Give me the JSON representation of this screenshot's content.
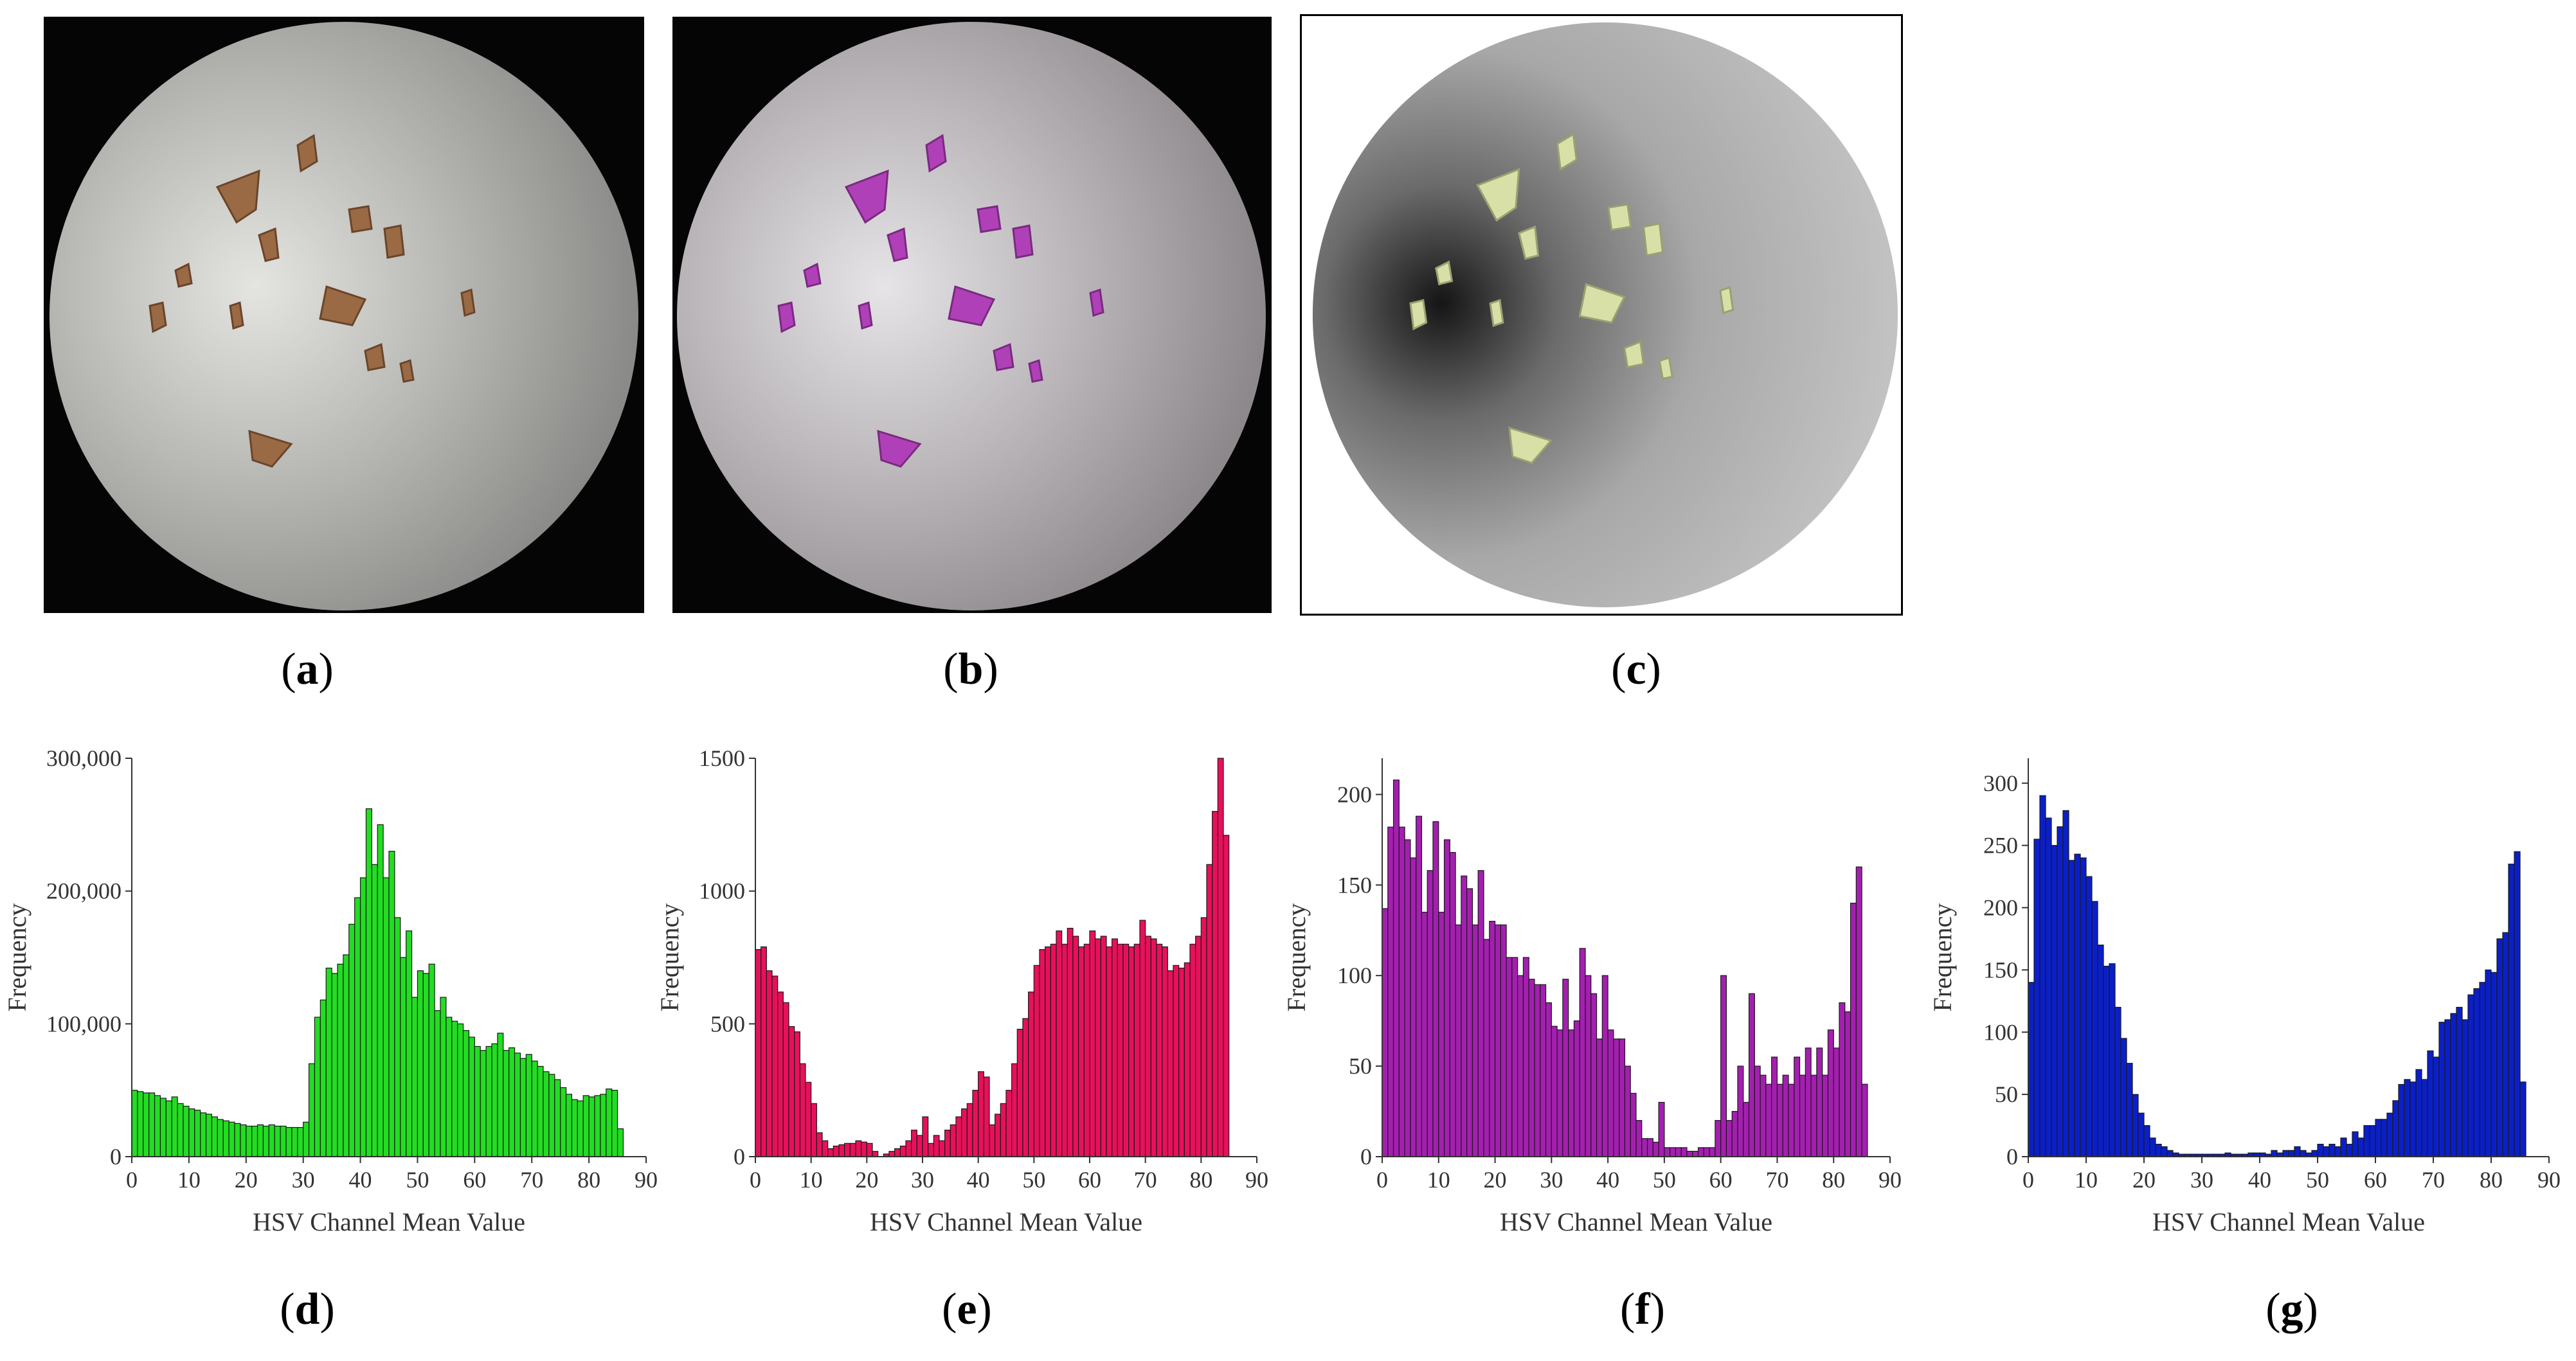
{
  "panel_labels": [
    "a",
    "b",
    "c",
    "d",
    "e",
    "f",
    "g"
  ],
  "colors": {
    "chart_d": "#22dd22",
    "chart_e": "#e8105a",
    "chart_f": "#a41fb0",
    "chart_g": "#0a1fc8"
  },
  "chart_data": [
    {
      "type": "bar",
      "panel": "d",
      "xlabel": "HSV Channel Mean Value",
      "ylabel": "Frequency",
      "xlim": [
        0,
        90
      ],
      "xticks": [
        0,
        10,
        20,
        30,
        40,
        50,
        60,
        70,
        80,
        90
      ],
      "ylim": [
        0,
        300000
      ],
      "yticks": [
        0,
        100000,
        200000,
        300000
      ],
      "ytick_labels": [
        "0",
        "100,000",
        "200,000",
        "300,000"
      ],
      "color": "#22dd22",
      "x": [
        0,
        1,
        2,
        3,
        4,
        5,
        6,
        7,
        8,
        9,
        10,
        11,
        12,
        13,
        14,
        15,
        16,
        17,
        18,
        19,
        20,
        21,
        22,
        23,
        24,
        25,
        26,
        27,
        28,
        29,
        30,
        31,
        32,
        33,
        34,
        35,
        36,
        37,
        38,
        39,
        40,
        41,
        42,
        43,
        44,
        45,
        46,
        47,
        48,
        49,
        50,
        51,
        52,
        53,
        54,
        55,
        56,
        57,
        58,
        59,
        60,
        61,
        62,
        63,
        64,
        65,
        66,
        67,
        68,
        69,
        70,
        71,
        72,
        73,
        74,
        75,
        76,
        77,
        78,
        79,
        80,
        81,
        82,
        83,
        84,
        85
      ],
      "values": [
        50000,
        49000,
        48000,
        48000,
        46000,
        44000,
        42000,
        45000,
        40000,
        38000,
        36000,
        35000,
        33000,
        32000,
        30000,
        28000,
        27000,
        26000,
        25000,
        24000,
        23000,
        23000,
        24000,
        23000,
        24000,
        23000,
        23000,
        22000,
        22000,
        22000,
        26000,
        70000,
        105000,
        118000,
        142000,
        138000,
        145000,
        152000,
        175000,
        195000,
        210000,
        262000,
        220000,
        250000,
        210000,
        230000,
        180000,
        150000,
        170000,
        120000,
        140000,
        138000,
        145000,
        110000,
        120000,
        105000,
        102000,
        100000,
        95000,
        90000,
        83000,
        80000,
        83000,
        85000,
        93000,
        80000,
        82000,
        78000,
        74000,
        77000,
        72000,
        68000,
        64000,
        62000,
        58000,
        52000,
        47000,
        43000,
        42000,
        46000,
        45000,
        46000,
        47000,
        51000,
        50000,
        21000
      ]
    },
    {
      "type": "bar",
      "panel": "e",
      "xlabel": "HSV Channel Mean Value",
      "ylabel": "Frequency",
      "xlim": [
        0,
        90
      ],
      "xticks": [
        0,
        10,
        20,
        30,
        40,
        50,
        60,
        70,
        80,
        90
      ],
      "ylim": [
        0,
        1500
      ],
      "yticks": [
        0,
        500,
        1000,
        1500
      ],
      "ytick_labels": [
        "0",
        "500",
        "1000",
        "1500"
      ],
      "color": "#e8105a",
      "x": [
        0,
        1,
        2,
        3,
        4,
        5,
        6,
        7,
        8,
        9,
        10,
        11,
        12,
        13,
        14,
        15,
        16,
        17,
        18,
        19,
        20,
        21,
        22,
        23,
        24,
        25,
        26,
        27,
        28,
        29,
        30,
        31,
        32,
        33,
        34,
        35,
        36,
        37,
        38,
        39,
        40,
        41,
        42,
        43,
        44,
        45,
        46,
        47,
        48,
        49,
        50,
        51,
        52,
        53,
        54,
        55,
        56,
        57,
        58,
        59,
        60,
        61,
        62,
        63,
        64,
        65,
        66,
        67,
        68,
        69,
        70,
        71,
        72,
        73,
        74,
        75,
        76,
        77,
        78,
        79,
        80,
        81,
        82,
        83,
        84
      ],
      "values": [
        780,
        790,
        700,
        680,
        620,
        580,
        490,
        470,
        350,
        280,
        200,
        90,
        60,
        30,
        40,
        45,
        50,
        50,
        60,
        55,
        50,
        20,
        0,
        10,
        20,
        30,
        40,
        60,
        100,
        80,
        150,
        50,
        80,
        60,
        100,
        120,
        150,
        180,
        200,
        250,
        320,
        300,
        120,
        160,
        200,
        250,
        350,
        480,
        520,
        620,
        720,
        780,
        790,
        800,
        850,
        800,
        860,
        830,
        790,
        800,
        850,
        820,
        830,
        790,
        820,
        800,
        800,
        790,
        800,
        890,
        830,
        820,
        800,
        790,
        700,
        720,
        710,
        730,
        800,
        830,
        900,
        1100,
        1300,
        1500,
        1210
      ]
    },
    {
      "type": "bar",
      "panel": "f",
      "xlabel": "HSV Channel Mean Value",
      "ylabel": "Frequency",
      "xlim": [
        0,
        90
      ],
      "xticks": [
        0,
        10,
        20,
        30,
        40,
        50,
        60,
        70,
        80,
        90
      ],
      "ylim": [
        0,
        220
      ],
      "yticks": [
        0,
        50,
        100,
        150,
        200
      ],
      "ytick_labels": [
        "0",
        "50",
        "100",
        "150",
        "200"
      ],
      "color": "#a41fb0",
      "x": [
        0,
        1,
        2,
        3,
        4,
        5,
        6,
        7,
        8,
        9,
        10,
        11,
        12,
        13,
        14,
        15,
        16,
        17,
        18,
        19,
        20,
        21,
        22,
        23,
        24,
        25,
        26,
        27,
        28,
        29,
        30,
        31,
        32,
        33,
        34,
        35,
        36,
        37,
        38,
        39,
        40,
        41,
        42,
        43,
        44,
        45,
        46,
        47,
        48,
        49,
        50,
        51,
        52,
        53,
        54,
        55,
        56,
        57,
        58,
        59,
        60,
        61,
        62,
        63,
        64,
        65,
        66,
        67,
        68,
        69,
        70,
        71,
        72,
        73,
        74,
        75,
        76,
        77,
        78,
        79,
        80,
        81,
        82,
        83,
        84,
        85
      ],
      "values": [
        137,
        182,
        208,
        182,
        175,
        165,
        188,
        135,
        158,
        185,
        135,
        175,
        168,
        128,
        155,
        148,
        128,
        158,
        120,
        130,
        128,
        128,
        110,
        110,
        100,
        110,
        98,
        95,
        95,
        85,
        72,
        70,
        98,
        70,
        75,
        115,
        100,
        90,
        65,
        100,
        70,
        65,
        65,
        50,
        35,
        20,
        10,
        10,
        8,
        30,
        5,
        5,
        5,
        5,
        3,
        3,
        5,
        5,
        5,
        20,
        100,
        20,
        25,
        50,
        30,
        90,
        50,
        45,
        40,
        55,
        40,
        45,
        40,
        55,
        45,
        60,
        45,
        60,
        45,
        70,
        60,
        85,
        80,
        140,
        160,
        40
      ]
    },
    {
      "type": "bar",
      "panel": "g",
      "xlabel": "HSV Channel Mean Value",
      "ylabel": "Frequency",
      "xlim": [
        0,
        90
      ],
      "xticks": [
        0,
        10,
        20,
        30,
        40,
        50,
        60,
        70,
        80,
        90
      ],
      "ylim": [
        0,
        320
      ],
      "yticks": [
        0,
        50,
        100,
        150,
        200,
        250,
        300
      ],
      "ytick_labels": [
        "0",
        "50",
        "100",
        "150",
        "200",
        "250",
        "300"
      ],
      "color": "#0a1fc8",
      "x": [
        0,
        1,
        2,
        3,
        4,
        5,
        6,
        7,
        8,
        9,
        10,
        11,
        12,
        13,
        14,
        15,
        16,
        17,
        18,
        19,
        20,
        21,
        22,
        23,
        24,
        25,
        26,
        27,
        28,
        29,
        30,
        31,
        32,
        33,
        34,
        35,
        36,
        37,
        38,
        39,
        40,
        41,
        42,
        43,
        44,
        45,
        46,
        47,
        48,
        49,
        50,
        51,
        52,
        53,
        54,
        55,
        56,
        57,
        58,
        59,
        60,
        61,
        62,
        63,
        64,
        65,
        66,
        67,
        68,
        69,
        70,
        71,
        72,
        73,
        74,
        75,
        76,
        77,
        78,
        79,
        80,
        81,
        82,
        83,
        84,
        85
      ],
      "values": [
        140,
        255,
        290,
        272,
        250,
        265,
        278,
        238,
        243,
        240,
        225,
        205,
        170,
        153,
        155,
        120,
        95,
        75,
        50,
        35,
        25,
        15,
        10,
        8,
        5,
        3,
        2,
        2,
        2,
        2,
        2,
        2,
        2,
        2,
        3,
        2,
        2,
        2,
        3,
        3,
        3,
        2,
        5,
        3,
        5,
        5,
        8,
        5,
        3,
        5,
        10,
        8,
        10,
        8,
        15,
        10,
        20,
        15,
        25,
        25,
        30,
        30,
        35,
        45,
        58,
        62,
        60,
        70,
        62,
        85,
        80,
        108,
        110,
        115,
        120,
        110,
        130,
        135,
        140,
        150,
        148,
        175,
        180,
        235,
        245,
        60
      ]
    }
  ]
}
